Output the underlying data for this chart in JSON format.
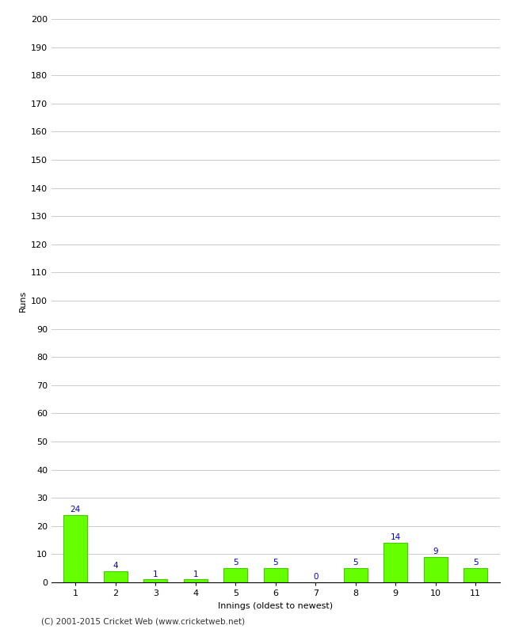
{
  "innings": [
    1,
    2,
    3,
    4,
    5,
    6,
    7,
    8,
    9,
    10,
    11
  ],
  "runs": [
    24,
    4,
    1,
    1,
    5,
    5,
    0,
    5,
    14,
    9,
    5
  ],
  "bar_color": "#66ff00",
  "bar_edge_color": "#44cc00",
  "label_color": "#0000cc",
  "xlabel": "Innings (oldest to newest)",
  "ylabel": "Runs",
  "ylim": [
    0,
    200
  ],
  "ytick_step": 10,
  "background_color": "#ffffff",
  "footer": "(C) 2001-2015 Cricket Web (www.cricketweb.net)",
  "grid_color": "#cccccc",
  "tick_label_fontsize": 8,
  "axis_label_fontsize": 8,
  "value_label_fontsize": 7.5
}
